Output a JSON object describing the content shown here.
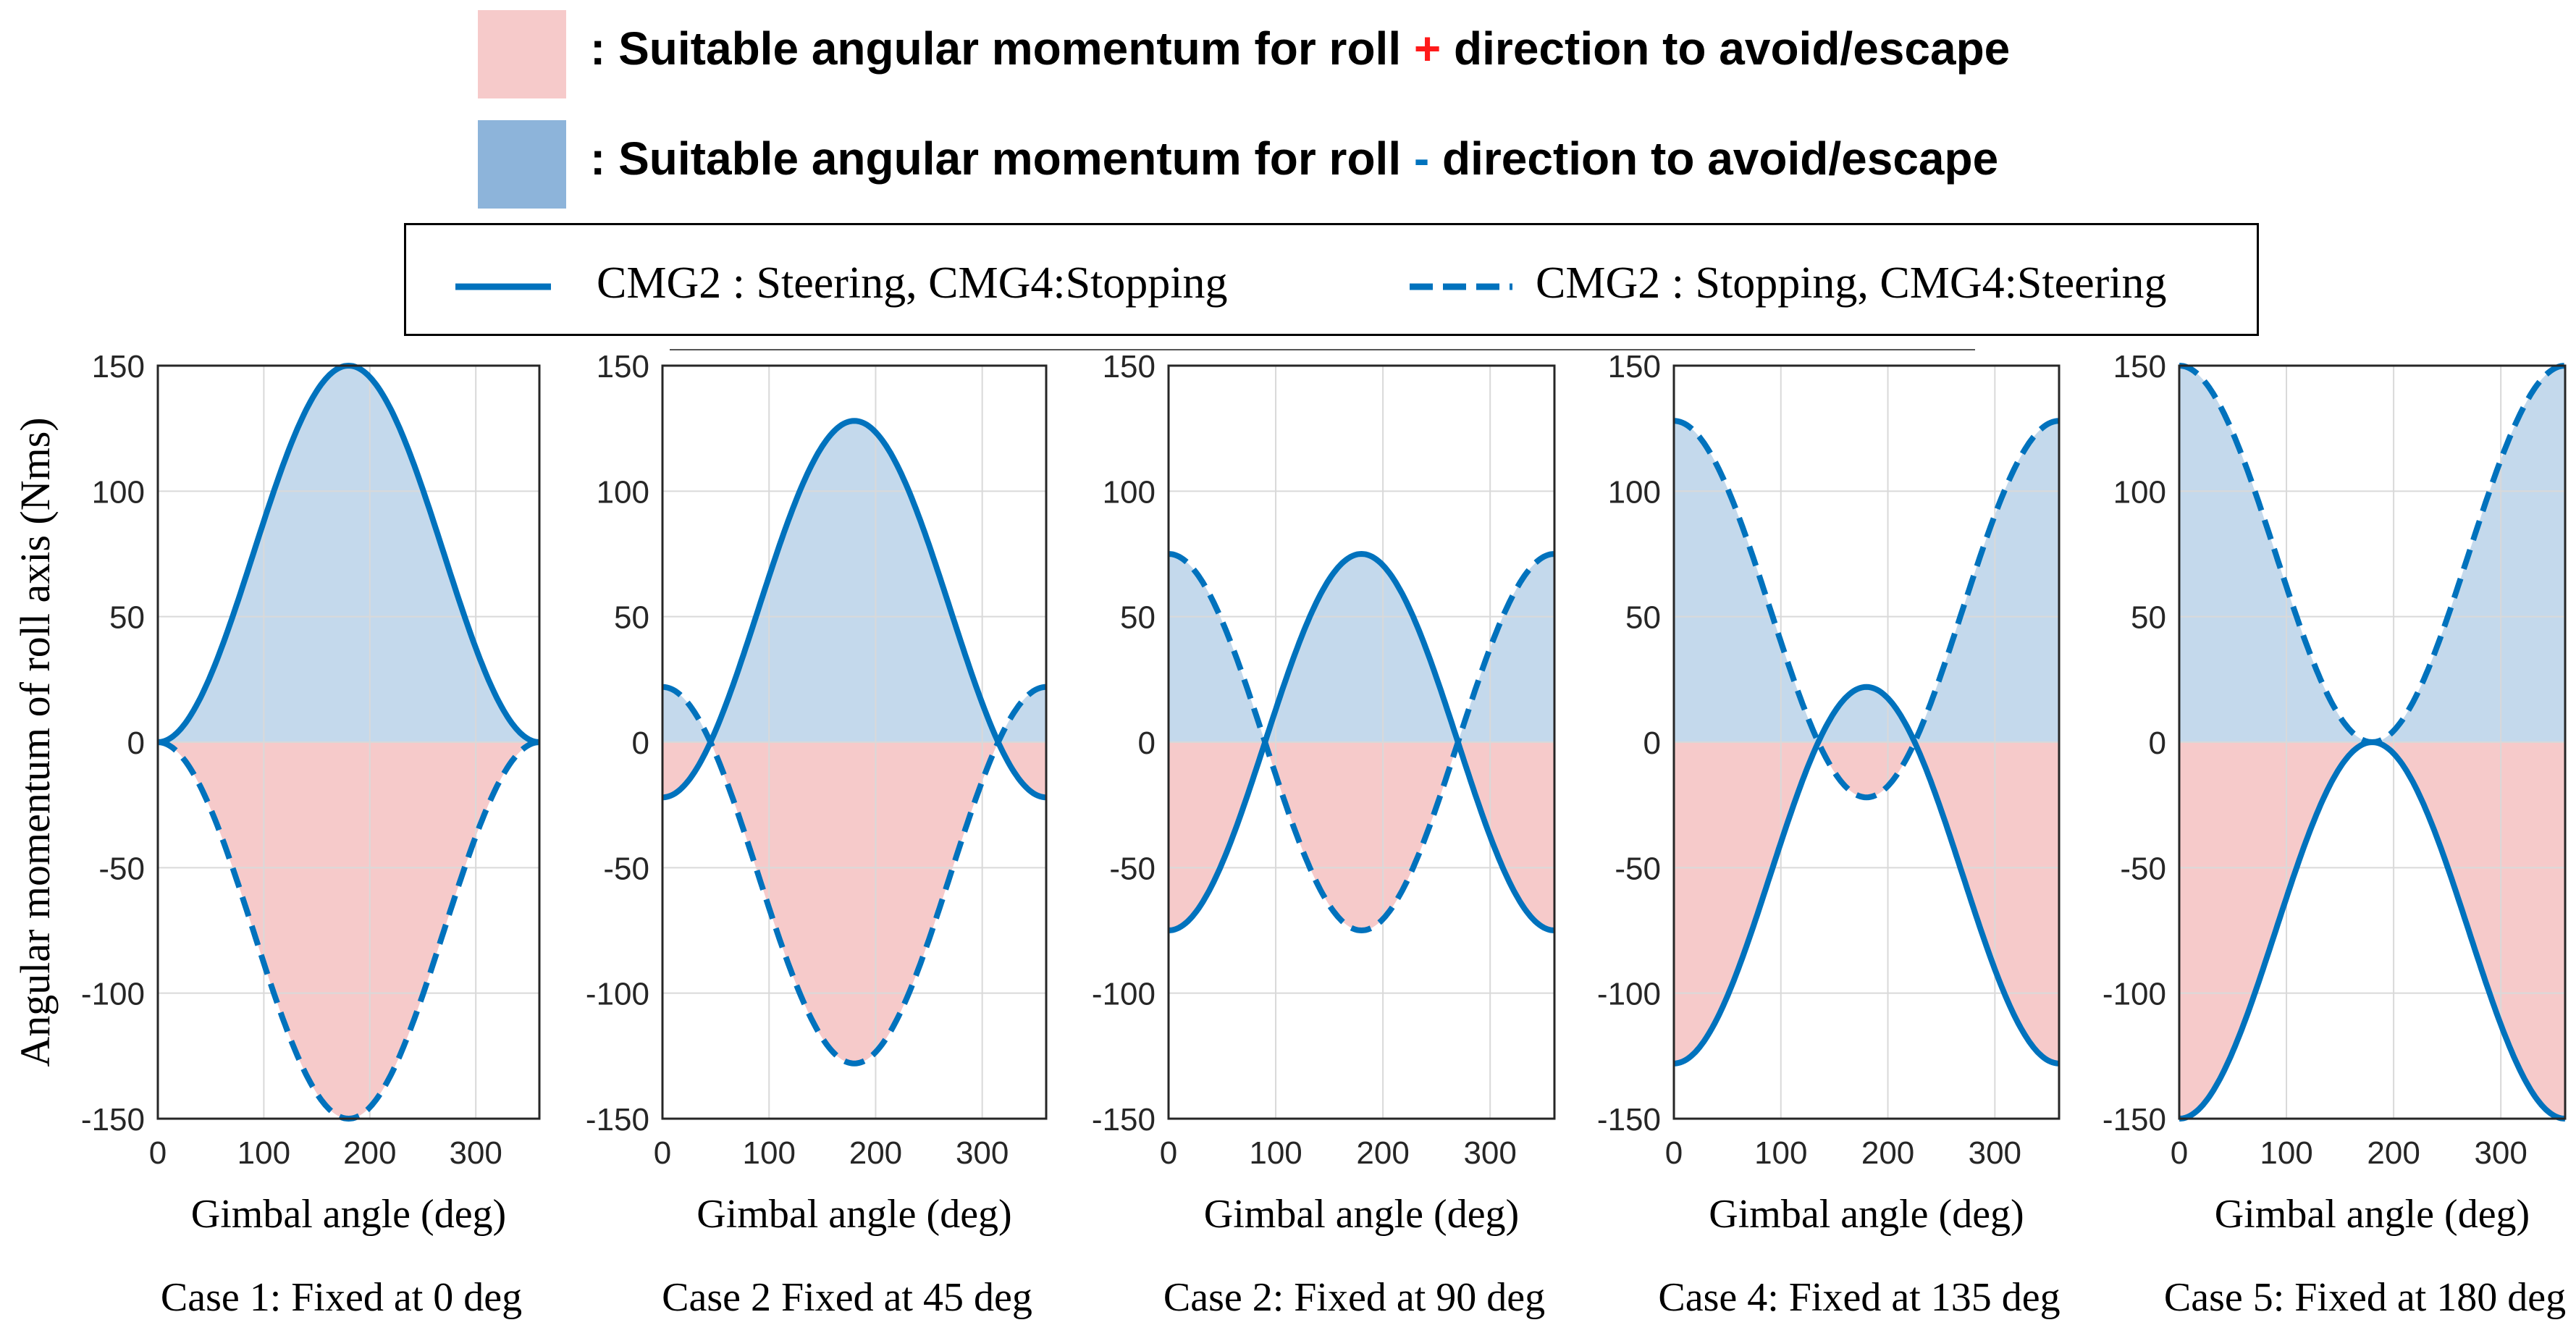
{
  "legend": {
    "positive_prefix": ": Suitable angular  momentum  for roll ",
    "positive_sign": "+",
    "positive_suffix": " direction to avoid/escape",
    "negative_prefix": ": Suitable angular  momentum  for roll  ",
    "negative_sign": "-",
    "negative_suffix": " direction to avoid/escape",
    "solid_label": "CMG2 : Steering, CMG4:Stopping",
    "dashed_label": "CMG2 : Stopping, CMG4:Steering"
  },
  "colors": {
    "line": "#0072bd",
    "positive_fill": "#f6caca",
    "negative_fill": "#c4d9ec",
    "plus_sign": "#ff1a1a",
    "minus_sign": "#0072bd"
  },
  "chart_data": [
    {
      "type": "line",
      "title": "Case 1: Fixed at 0 deg",
      "xlabel": "Gimbal angle  (deg)",
      "ylabel": "Angular momentum of roll axis (Nms)",
      "xlim": [
        0,
        360
      ],
      "ylim": [
        -150,
        150
      ],
      "xticks": [
        0,
        100,
        200,
        300
      ],
      "yticks": [
        150,
        100,
        50,
        0,
        -50,
        -100,
        -150
      ],
      "grid": true,
      "fixed_angle_deg": 0,
      "series": [
        {
          "name": "CMG2 : Steering, CMG4:Stopping",
          "style": "solid",
          "x": [
            0,
            45,
            90,
            135,
            180,
            225,
            270,
            315,
            360
          ],
          "values": [
            0,
            22,
            75,
            128,
            150,
            128,
            75,
            22,
            0
          ]
        },
        {
          "name": "CMG2 : Stopping, CMG4:Steering",
          "style": "dashed",
          "x": [
            0,
            45,
            90,
            135,
            180,
            225,
            270,
            315,
            360
          ],
          "values": [
            0,
            -22,
            -75,
            -128,
            -150,
            -128,
            -75,
            -22,
            0
          ]
        }
      ]
    },
    {
      "type": "line",
      "title": "Case 2 Fixed at 45 deg",
      "xlabel": "Gimbal angle  (deg)",
      "xlim": [
        0,
        360
      ],
      "ylim": [
        -150,
        150
      ],
      "xticks": [
        0,
        100,
        200,
        300
      ],
      "yticks": [
        150,
        100,
        50,
        0,
        -50,
        -100,
        -150
      ],
      "grid": true,
      "fixed_angle_deg": 45,
      "series": [
        {
          "name": "CMG2 : Steering, CMG4:Stopping",
          "style": "solid",
          "x": [
            0,
            45,
            90,
            135,
            180,
            225,
            270,
            315,
            360
          ],
          "values": [
            -22,
            0,
            53,
            106,
            128,
            106,
            53,
            0,
            -22
          ]
        },
        {
          "name": "CMG2 : Stopping, CMG4:Steering",
          "style": "dashed",
          "x": [
            0,
            45,
            90,
            135,
            180,
            225,
            270,
            315,
            360
          ],
          "values": [
            22,
            0,
            -53,
            -106,
            -128,
            -106,
            -53,
            0,
            22
          ]
        }
      ]
    },
    {
      "type": "line",
      "title": "Case 2: Fixed at 90 deg",
      "xlabel": "Gimbal angle  (deg)",
      "xlim": [
        0,
        360
      ],
      "ylim": [
        -150,
        150
      ],
      "xticks": [
        0,
        100,
        200,
        300
      ],
      "yticks": [
        150,
        100,
        50,
        0,
        -50,
        -100,
        -150
      ],
      "grid": true,
      "fixed_angle_deg": 90,
      "series": [
        {
          "name": "CMG2 : Steering, CMG4:Stopping",
          "style": "solid",
          "x": [
            0,
            45,
            90,
            135,
            180,
            225,
            270,
            315,
            360
          ],
          "values": [
            -75,
            -53,
            0,
            53,
            75,
            53,
            0,
            -53,
            -75
          ]
        },
        {
          "name": "CMG2 : Stopping, CMG4:Steering",
          "style": "dashed",
          "x": [
            0,
            45,
            90,
            135,
            180,
            225,
            270,
            315,
            360
          ],
          "values": [
            75,
            53,
            0,
            -53,
            -75,
            -53,
            0,
            53,
            75
          ]
        }
      ]
    },
    {
      "type": "line",
      "title": "Case 4: Fixed at 135 deg",
      "xlabel": "Gimbal angle  (deg)",
      "xlim": [
        0,
        360
      ],
      "ylim": [
        -150,
        150
      ],
      "xticks": [
        0,
        100,
        200,
        300
      ],
      "yticks": [
        150,
        100,
        50,
        0,
        -50,
        -100,
        -150
      ],
      "grid": true,
      "fixed_angle_deg": 135,
      "series": [
        {
          "name": "CMG2 : Steering, CMG4:Stopping",
          "style": "solid",
          "x": [
            0,
            45,
            90,
            135,
            180,
            225,
            270,
            315,
            360
          ],
          "values": [
            -128,
            -106,
            -53,
            0,
            22,
            0,
            -53,
            -106,
            -128
          ]
        },
        {
          "name": "CMG2 : Stopping, CMG4:Steering",
          "style": "dashed",
          "x": [
            0,
            45,
            90,
            135,
            180,
            225,
            270,
            315,
            360
          ],
          "values": [
            128,
            106,
            53,
            0,
            -22,
            0,
            53,
            106,
            128
          ]
        }
      ]
    },
    {
      "type": "line",
      "title": "Case 5: Fixed at 180 deg",
      "xlabel": "Gimbal angle  (deg)",
      "xlim": [
        0,
        360
      ],
      "ylim": [
        -150,
        150
      ],
      "xticks": [
        0,
        100,
        200,
        300
      ],
      "yticks": [
        150,
        100,
        50,
        0,
        -50,
        -100,
        -150
      ],
      "grid": true,
      "fixed_angle_deg": 180,
      "series": [
        {
          "name": "CMG2 : Steering, CMG4:Stopping",
          "style": "solid",
          "x": [
            0,
            45,
            90,
            135,
            180,
            225,
            270,
            315,
            360
          ],
          "values": [
            -150,
            -128,
            -75,
            -22,
            0,
            -22,
            -75,
            -128,
            -150
          ]
        },
        {
          "name": "CMG2 : Stopping, CMG4:Steering",
          "style": "dashed",
          "x": [
            0,
            45,
            90,
            135,
            180,
            225,
            270,
            315,
            360
          ],
          "values": [
            150,
            128,
            75,
            22,
            0,
            22,
            75,
            128,
            150
          ]
        }
      ]
    }
  ]
}
